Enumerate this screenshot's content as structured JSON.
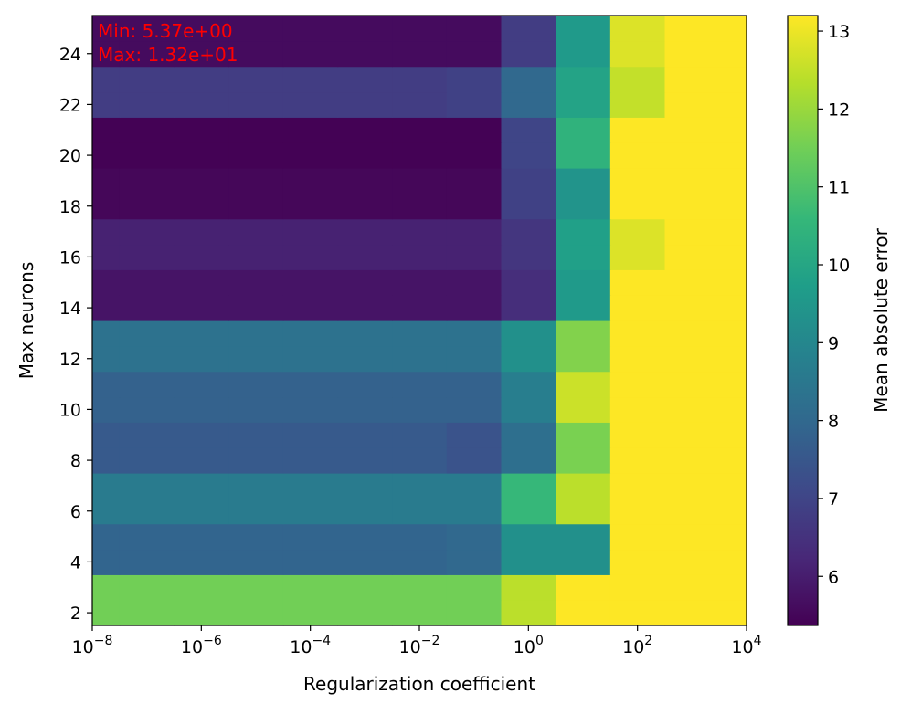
{
  "chart_data": {
    "type": "heatmap",
    "title": "",
    "xlabel": "Regularization coefficient",
    "ylabel": "Max neurons",
    "x_scale": "log",
    "x_tick_exponents": [
      -8,
      -6,
      -4,
      -2,
      0,
      2,
      4
    ],
    "x_tick_base": "10",
    "xlim_exponent": [
      -8,
      4
    ],
    "y_ticks": [
      2,
      4,
      6,
      8,
      10,
      12,
      14,
      16,
      18,
      20,
      22,
      24
    ],
    "ylim": [
      1.5,
      25.5
    ],
    "x_centers": [
      "1e-08",
      "1e-07",
      "1e-06",
      "1e-05",
      "0.0001",
      "0.001",
      "0.01",
      "0.1",
      "1",
      "10",
      "100",
      "1000"
    ],
    "y_centers": [
      2,
      3,
      4,
      5,
      6,
      7,
      8,
      9,
      10,
      11,
      12,
      13,
      14,
      15,
      16,
      17,
      18,
      19,
      20,
      21,
      22,
      23,
      24,
      25
    ],
    "values": [
      [
        11.5,
        11.5,
        11.5,
        11.5,
        11.5,
        11.5,
        11.5,
        11.5,
        12.4,
        13.2,
        13.2,
        13.2
      ],
      [
        11.5,
        11.5,
        11.5,
        11.5,
        11.5,
        11.5,
        11.5,
        11.5,
        12.4,
        13.2,
        13.2,
        13.2
      ],
      [
        7.9,
        7.9,
        7.9,
        7.9,
        7.9,
        7.9,
        7.9,
        8.0,
        9.3,
        9.3,
        13.2,
        13.2
      ],
      [
        7.9,
        7.9,
        7.9,
        7.9,
        7.9,
        7.9,
        7.9,
        8.0,
        9.3,
        9.3,
        13.2,
        13.2
      ],
      [
        8.6,
        8.6,
        8.6,
        8.6,
        8.6,
        8.6,
        8.6,
        8.6,
        10.6,
        12.4,
        13.2,
        13.2
      ],
      [
        8.6,
        8.6,
        8.6,
        8.6,
        8.6,
        8.6,
        8.6,
        8.6,
        10.6,
        12.4,
        13.2,
        13.2
      ],
      [
        7.6,
        7.6,
        7.6,
        7.6,
        7.6,
        7.6,
        7.6,
        7.4,
        8.2,
        11.6,
        13.2,
        13.2
      ],
      [
        7.6,
        7.6,
        7.6,
        7.6,
        7.6,
        7.6,
        7.6,
        7.4,
        8.2,
        11.6,
        13.2,
        13.2
      ],
      [
        7.8,
        7.8,
        7.8,
        7.8,
        7.8,
        7.8,
        7.8,
        7.8,
        8.7,
        12.6,
        13.2,
        13.2
      ],
      [
        7.8,
        7.8,
        7.8,
        7.8,
        7.8,
        7.8,
        7.8,
        7.8,
        8.7,
        12.6,
        13.2,
        13.2
      ],
      [
        8.3,
        8.3,
        8.3,
        8.3,
        8.3,
        8.3,
        8.3,
        8.3,
        9.3,
        11.7,
        13.2,
        13.2
      ],
      [
        8.3,
        8.3,
        8.3,
        8.3,
        8.3,
        8.3,
        8.3,
        8.3,
        9.3,
        11.7,
        13.2,
        13.2
      ],
      [
        5.8,
        5.8,
        5.8,
        5.8,
        5.8,
        5.8,
        5.8,
        5.8,
        6.4,
        9.6,
        13.2,
        13.2
      ],
      [
        5.8,
        5.8,
        5.8,
        5.8,
        5.8,
        5.8,
        5.8,
        5.8,
        6.4,
        9.6,
        13.2,
        13.2
      ],
      [
        6.1,
        6.1,
        6.1,
        6.1,
        6.1,
        6.1,
        6.1,
        6.1,
        6.6,
        9.8,
        12.8,
        13.2
      ],
      [
        6.1,
        6.1,
        6.1,
        6.1,
        6.1,
        6.1,
        6.1,
        6.1,
        6.6,
        9.8,
        12.8,
        13.2
      ],
      [
        5.5,
        5.5,
        5.5,
        5.5,
        5.5,
        5.5,
        5.5,
        5.5,
        6.9,
        9.4,
        13.2,
        13.2
      ],
      [
        5.5,
        5.5,
        5.5,
        5.5,
        5.5,
        5.5,
        5.5,
        5.5,
        6.9,
        9.4,
        13.2,
        13.2
      ],
      [
        5.4,
        5.4,
        5.4,
        5.4,
        5.4,
        5.4,
        5.4,
        5.4,
        7.0,
        10.4,
        13.2,
        13.2
      ],
      [
        5.4,
        5.4,
        5.4,
        5.4,
        5.4,
        5.4,
        5.4,
        5.4,
        7.0,
        10.4,
        13.2,
        13.2
      ],
      [
        6.8,
        6.8,
        6.8,
        6.8,
        6.8,
        6.8,
        6.8,
        6.9,
        8.0,
        9.9,
        12.5,
        13.2
      ],
      [
        6.8,
        6.8,
        6.8,
        6.8,
        6.8,
        6.8,
        6.8,
        6.9,
        8.0,
        9.9,
        12.5,
        13.2
      ],
      [
        5.6,
        5.6,
        5.6,
        5.6,
        5.6,
        5.6,
        5.6,
        5.6,
        6.8,
        9.6,
        12.8,
        13.2
      ],
      [
        5.6,
        5.6,
        5.6,
        5.6,
        5.6,
        5.6,
        5.6,
        5.6,
        6.8,
        9.6,
        12.8,
        13.2
      ]
    ],
    "color_min": 5.37,
    "color_max": 13.2,
    "colormap": "viridis",
    "colorbar": {
      "label": "Mean absolute error",
      "ticks": [
        6,
        7,
        8,
        9,
        10,
        11,
        12,
        13
      ]
    },
    "annotations": {
      "min_text": "Min: 5.37e+00",
      "max_text": "Max: 1.32e+01",
      "color": "#ff0000"
    },
    "grid": false
  }
}
